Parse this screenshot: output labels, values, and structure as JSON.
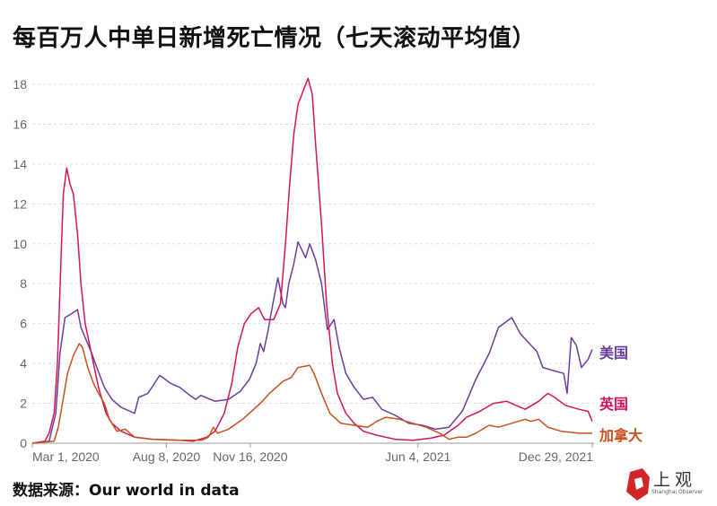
{
  "title": "每百万人中单日新增死亡情况（七天滚动平均值）",
  "source": "数据来源：Our world in data",
  "logo": {
    "text": "上观",
    "sub": "Shanghai Observer"
  },
  "chart_data": {
    "type": "line",
    "title": "每百万人中单日新增死亡情况（七天滚动平均值）",
    "xlabel": "",
    "ylabel": "",
    "x_unit": "days since Mar 1, 2020",
    "xlim": [
      0,
      668
    ],
    "ylim": [
      0,
      18
    ],
    "yticks": [
      0,
      2,
      4,
      6,
      8,
      10,
      12,
      14,
      16,
      18
    ],
    "xticks": [
      {
        "day": 0,
        "label": "Mar 1, 2020"
      },
      {
        "day": 160,
        "label": "Aug 8, 2020"
      },
      {
        "day": 260,
        "label": "Nov 16, 2020"
      },
      {
        "day": 460,
        "label": "Jun 4, 2021"
      },
      {
        "day": 668,
        "label": "Dec 29, 2021"
      }
    ],
    "grid": true,
    "legend": "inline-right",
    "series": [
      {
        "name": "美国",
        "color": "#6a3d9a",
        "points": [
          [
            0,
            0
          ],
          [
            20,
            0.1
          ],
          [
            28,
            1.5
          ],
          [
            33,
            4.5
          ],
          [
            39,
            6.3
          ],
          [
            47,
            6.5
          ],
          [
            54,
            6.7
          ],
          [
            58,
            5.8
          ],
          [
            64,
            5.2
          ],
          [
            71,
            4.5
          ],
          [
            77,
            3.8
          ],
          [
            86,
            2.8
          ],
          [
            95,
            2.2
          ],
          [
            106,
            1.8
          ],
          [
            122,
            1.5
          ],
          [
            127,
            2.3
          ],
          [
            138,
            2.5
          ],
          [
            152,
            3.4
          ],
          [
            165,
            3
          ],
          [
            176,
            2.8
          ],
          [
            188,
            2.4
          ],
          [
            195,
            2.2
          ],
          [
            201,
            2.4
          ],
          [
            218,
            2.1
          ],
          [
            234,
            2.2
          ],
          [
            248,
            2.6
          ],
          [
            259,
            3.2
          ],
          [
            267,
            4
          ],
          [
            272,
            5
          ],
          [
            276,
            4.6
          ],
          [
            281,
            5.6
          ],
          [
            287,
            7
          ],
          [
            293,
            8.3
          ],
          [
            299,
            7
          ],
          [
            302,
            6.8
          ],
          [
            306,
            8
          ],
          [
            312,
            9
          ],
          [
            317,
            10.1
          ],
          [
            326,
            9.3
          ],
          [
            331,
            10
          ],
          [
            338,
            9.2
          ],
          [
            345,
            8
          ],
          [
            352,
            5.7
          ],
          [
            360,
            6.2
          ],
          [
            366,
            4.8
          ],
          [
            374,
            3.5
          ],
          [
            384,
            2.8
          ],
          [
            395,
            2.2
          ],
          [
            406,
            2.3
          ],
          [
            417,
            1.7
          ],
          [
            433,
            1.4
          ],
          [
            449,
            1
          ],
          [
            465,
            0.9
          ],
          [
            481,
            0.7
          ],
          [
            497,
            0.8
          ],
          [
            513,
            1.6
          ],
          [
            529,
            3.2
          ],
          [
            545,
            4.5
          ],
          [
            556,
            5.8
          ],
          [
            572,
            6.3
          ],
          [
            582,
            5.5
          ],
          [
            593,
            5
          ],
          [
            602,
            4.6
          ],
          [
            609,
            3.8
          ],
          [
            617,
            3.7
          ],
          [
            625,
            3.6
          ],
          [
            634,
            3.5
          ],
          [
            638,
            2.5
          ],
          [
            643,
            5.3
          ],
          [
            649,
            4.9
          ],
          [
            655,
            3.8
          ],
          [
            663,
            4.2
          ],
          [
            668,
            4.7
          ]
        ]
      },
      {
        "name": "英国",
        "color": "#d4145a",
        "points": [
          [
            0,
            0
          ],
          [
            15,
            0.1
          ],
          [
            20,
            0.5
          ],
          [
            26,
            1.5
          ],
          [
            30,
            4
          ],
          [
            34,
            9
          ],
          [
            37,
            12.5
          ],
          [
            41,
            13.8
          ],
          [
            45,
            13
          ],
          [
            49,
            12.5
          ],
          [
            54,
            10.5
          ],
          [
            58,
            8
          ],
          [
            63,
            6
          ],
          [
            69,
            4.8
          ],
          [
            74,
            3.8
          ],
          [
            79,
            2.8
          ],
          [
            88,
            1.5
          ],
          [
            95,
            1
          ],
          [
            106,
            0.6
          ],
          [
            122,
            0.3
          ],
          [
            143,
            0.2
          ],
          [
            176,
            0.15
          ],
          [
            192,
            0.1
          ],
          [
            208,
            0.3
          ],
          [
            218,
            0.6
          ],
          [
            229,
            1.5
          ],
          [
            238,
            3
          ],
          [
            245,
            4.8
          ],
          [
            253,
            6
          ],
          [
            261,
            6.5
          ],
          [
            270,
            6.8
          ],
          [
            277,
            6.2
          ],
          [
            288,
            6.2
          ],
          [
            296,
            7
          ],
          [
            302,
            10
          ],
          [
            307,
            13
          ],
          [
            312,
            15.5
          ],
          [
            317,
            17
          ],
          [
            329,
            18.3
          ],
          [
            334,
            17.5
          ],
          [
            338,
            15
          ],
          [
            345,
            11
          ],
          [
            351,
            7
          ],
          [
            358,
            4
          ],
          [
            364,
            2.5
          ],
          [
            374,
            1.5
          ],
          [
            384,
            1
          ],
          [
            395,
            0.6
          ],
          [
            411,
            0.4
          ],
          [
            433,
            0.2
          ],
          [
            454,
            0.15
          ],
          [
            475,
            0.25
          ],
          [
            491,
            0.4
          ],
          [
            508,
            0.9
          ],
          [
            518,
            1.3
          ],
          [
            534,
            1.6
          ],
          [
            550,
            2
          ],
          [
            566,
            2.1
          ],
          [
            577,
            1.9
          ],
          [
            588,
            1.7
          ],
          [
            604,
            2.1
          ],
          [
            615,
            2.5
          ],
          [
            623,
            2.3
          ],
          [
            636,
            1.9
          ],
          [
            652,
            1.7
          ],
          [
            663,
            1.6
          ],
          [
            668,
            1.1
          ]
        ]
      },
      {
        "name": "加拿大",
        "color": "#c8501e",
        "points": [
          [
            0,
            0
          ],
          [
            26,
            0.1
          ],
          [
            31,
            0.8
          ],
          [
            36,
            2
          ],
          [
            42,
            3.5
          ],
          [
            49,
            4.4
          ],
          [
            56,
            5
          ],
          [
            60,
            4.8
          ],
          [
            66,
            3.8
          ],
          [
            73,
            3
          ],
          [
            79,
            2.5
          ],
          [
            86,
            2
          ],
          [
            92,
            1.2
          ],
          [
            101,
            0.6
          ],
          [
            111,
            0.7
          ],
          [
            122,
            0.3
          ],
          [
            143,
            0.2
          ],
          [
            176,
            0.15
          ],
          [
            202,
            0.15
          ],
          [
            210,
            0.3
          ],
          [
            216,
            0.8
          ],
          [
            221,
            0.5
          ],
          [
            234,
            0.7
          ],
          [
            251,
            1.2
          ],
          [
            272,
            2
          ],
          [
            283,
            2.5
          ],
          [
            299,
            3.1
          ],
          [
            309,
            3.3
          ],
          [
            317,
            3.8
          ],
          [
            331,
            3.9
          ],
          [
            336,
            3.5
          ],
          [
            345,
            2.5
          ],
          [
            355,
            1.5
          ],
          [
            368,
            1
          ],
          [
            384,
            0.9
          ],
          [
            400,
            0.8
          ],
          [
            411,
            1.1
          ],
          [
            422,
            1.3
          ],
          [
            438,
            1.2
          ],
          [
            454,
            1
          ],
          [
            470,
            0.8
          ],
          [
            486,
            0.5
          ],
          [
            497,
            0.2
          ],
          [
            508,
            0.3
          ],
          [
            518,
            0.3
          ],
          [
            529,
            0.5
          ],
          [
            545,
            0.9
          ],
          [
            556,
            0.8
          ],
          [
            572,
            1
          ],
          [
            588,
            1.2
          ],
          [
            595,
            1.1
          ],
          [
            604,
            1.2
          ],
          [
            615,
            0.8
          ],
          [
            631,
            0.6
          ],
          [
            652,
            0.5
          ],
          [
            668,
            0.5
          ]
        ]
      }
    ]
  }
}
